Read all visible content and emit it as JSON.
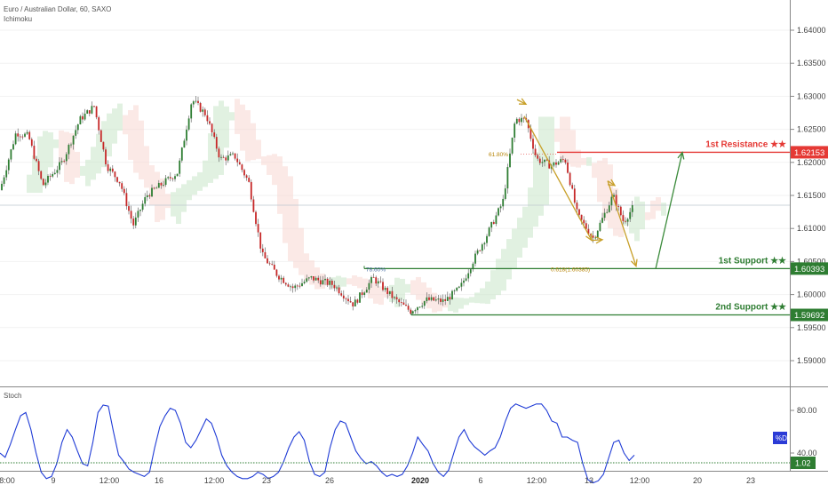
{
  "header": {
    "title": "Euro / Australian Dollar, 60, SAXO",
    "indicator": "Ichimoku",
    "osc_title": "Stoch"
  },
  "chart_data": {
    "type": "candlestick",
    "symbol": "Euro / Australian Dollar",
    "timeframe": "60",
    "source": "SAXO",
    "price_axis": {
      "ticks": [
        "1.64000",
        "1.63500",
        "1.63000",
        "1.62500",
        "1.62000",
        "1.61500",
        "1.61000",
        "1.60500",
        "1.60000",
        "1.59500",
        "1.59000"
      ],
      "ylim": [
        1.586,
        1.6455
      ]
    },
    "time_axis": {
      "ticks": [
        "8:00",
        "9",
        "12:00",
        "16",
        "12:00",
        "23",
        "26",
        "2020",
        "6",
        "12:00",
        "13",
        "12:00",
        "20",
        "23"
      ]
    },
    "levels": [
      {
        "name": "1st Resistance ★★",
        "value": "1.62153",
        "price": 1.62153,
        "color": "#e53935"
      },
      {
        "name": "1st Support ★★",
        "value": "1.60393",
        "price": 1.60393,
        "color": "#2e7d32"
      },
      {
        "name": "2nd Support ★★",
        "value": "1.59692",
        "price": 1.59692,
        "color": "#2e7d32"
      }
    ],
    "fib_labels": [
      {
        "text": "61.80%",
        "price": 1.6213
      },
      {
        "text": "78.60%",
        "price": 1.6039
      },
      {
        "text": "0.618(1.60385)",
        "price": 1.6039
      }
    ],
    "path": [
      [
        0,
        1.6158
      ],
      [
        18,
        1.6245
      ],
      [
        32,
        1.624
      ],
      [
        48,
        1.6165
      ],
      [
        70,
        1.62
      ],
      [
        90,
        1.6265
      ],
      [
        106,
        1.6285
      ],
      [
        120,
        1.6195
      ],
      [
        135,
        1.617
      ],
      [
        150,
        1.6105
      ],
      [
        165,
        1.615
      ],
      [
        185,
        1.617
      ],
      [
        200,
        1.6185
      ],
      [
        216,
        1.6295
      ],
      [
        232,
        1.6272
      ],
      [
        248,
        1.6205
      ],
      [
        264,
        1.621
      ],
      [
        280,
        1.617
      ],
      [
        295,
        1.606
      ],
      [
        312,
        1.603
      ],
      [
        330,
        1.601
      ],
      [
        350,
        1.6025
      ],
      [
        375,
        1.6015
      ],
      [
        398,
        1.5985
      ],
      [
        420,
        1.6025
      ],
      [
        445,
        1.5992
      ],
      [
        462,
        1.5975
      ],
      [
        480,
        1.5992
      ],
      [
        500,
        1.599
      ],
      [
        518,
        1.601
      ],
      [
        532,
        1.605
      ],
      [
        548,
        1.609
      ],
      [
        566,
        1.614
      ],
      [
        580,
        1.6265
      ],
      [
        592,
        1.6265
      ],
      [
        604,
        1.6205
      ],
      [
        620,
        1.6195
      ],
      [
        636,
        1.6205
      ],
      [
        650,
        1.612
      ],
      [
        668,
        1.6085
      ],
      [
        690,
        1.615
      ],
      [
        702,
        1.611
      ],
      [
        714,
        1.6135
      ]
    ],
    "projections": {
      "gold": [
        [
          [
            582,
            1.6295
          ],
          [
            592,
            1.6288
          ]
        ],
        [
          [
            590,
            1.627
          ],
          [
            666,
            1.6082
          ]
        ],
        [
          [
            666,
            1.6082
          ],
          [
            678,
            1.6083
          ]
        ],
        [
          [
            684,
            1.6172
          ],
          [
            692,
            1.6165
          ]
        ],
        [
          [
            684,
            1.6172
          ],
          [
            716,
            1.6043
          ]
        ]
      ],
      "green": [
        [
          738,
          1.6039
        ],
        [
          768,
          1.6215
        ]
      ]
    },
    "stoch": {
      "name": "%D",
      "ticks": [
        "80.00",
        "40.00"
      ],
      "ylim": [
        0,
        100
      ],
      "level": "1.02",
      "values": [
        40,
        36,
        48,
        62,
        75,
        78,
        62,
        40,
        22,
        16,
        18,
        30,
        50,
        62,
        55,
        42,
        30,
        28,
        50,
        78,
        85,
        84,
        60,
        38,
        32,
        25,
        22,
        20,
        18,
        22,
        45,
        65,
        75,
        82,
        80,
        68,
        50,
        45,
        52,
        62,
        72,
        68,
        55,
        38,
        28,
        22,
        18,
        16,
        16,
        18,
        22,
        20,
        16,
        18,
        22,
        32,
        45,
        55,
        60,
        52,
        32,
        20,
        18,
        22,
        45,
        62,
        70,
        68,
        55,
        42,
        35,
        30,
        32,
        28,
        22,
        18,
        20,
        18,
        20,
        28,
        40,
        55,
        48,
        42,
        30,
        22,
        18,
        24,
        40,
        55,
        62,
        52,
        46,
        42,
        38,
        42,
        45,
        55,
        70,
        82,
        86,
        84,
        82,
        84,
        86,
        86,
        80,
        70,
        68,
        55,
        55,
        52,
        50,
        30,
        15,
        12,
        14,
        20,
        35,
        50,
        52,
        40,
        33,
        38
      ]
    }
  }
}
